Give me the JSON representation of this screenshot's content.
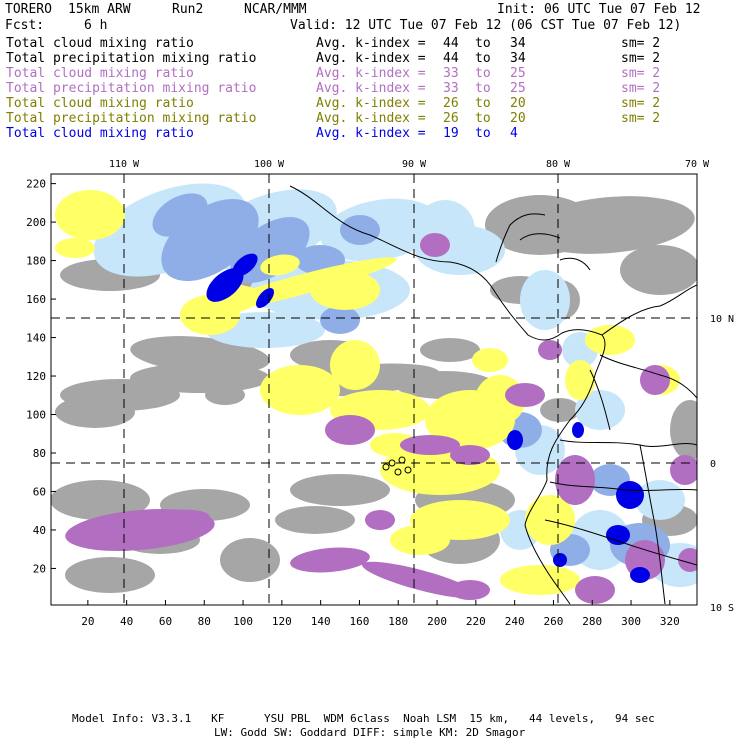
{
  "header": {
    "model": "TORERO",
    "resolution": "15km ARW",
    "run": "Run2",
    "org": "NCAR/MMM",
    "init": "Init: 06 UTC Tue 07 Feb 12",
    "fcst_label": "Fcst:",
    "fcst_value": "6 h",
    "valid": "Valid: 12 UTC Tue 07 Feb 12 (06 CST Tue 07 Feb 12)"
  },
  "legend": [
    {
      "field": "Total cloud mixing ratio",
      "avg": "Avg. k-index =",
      "from": "44",
      "to_word": "to",
      "to": "34",
      "sm": "sm= 2",
      "color": "#000000"
    },
    {
      "field": "Total precipitation mixing ratio",
      "avg": "Avg. k-index =",
      "from": "44",
      "to_word": "to",
      "to": "34",
      "sm": "sm= 2",
      "color": "#000000"
    },
    {
      "field": "Total cloud mixing ratio",
      "avg": "Avg. k-index =",
      "from": "33",
      "to_word": "to",
      "to": "25",
      "sm": "sm= 2",
      "color": "#b26fc2"
    },
    {
      "field": "Total precipitation mixing ratio",
      "avg": "Avg. k-index =",
      "from": "33",
      "to_word": "to",
      "to": "25",
      "sm": "sm= 2",
      "color": "#b26fc2"
    },
    {
      "field": "Total cloud mixing ratio",
      "avg": "Avg. k-index =",
      "from": "26",
      "to_word": "to",
      "to": "20",
      "sm": "sm= 2",
      "color": "#7f7f00"
    },
    {
      "field": "Total precipitation mixing ratio",
      "avg": "Avg. k-index =",
      "from": "26",
      "to_word": "to",
      "to": "20",
      "sm": "sm= 2",
      "color": "#7f7f00"
    },
    {
      "field": "Total cloud mixing ratio",
      "avg": "Avg. k-index =",
      "from": "19",
      "to_word": "to",
      "to": "4",
      "sm": "",
      "color": "#0000e6"
    }
  ],
  "map": {
    "lon_labels": [
      "110 W",
      "100 W",
      "90 W",
      "80 W",
      "70 W"
    ],
    "lat_labels": [
      "10 N",
      "0",
      "10 S"
    ],
    "x_ticks": [
      20,
      40,
      60,
      80,
      100,
      120,
      140,
      160,
      180,
      200,
      220,
      240,
      260,
      280,
      300,
      320
    ],
    "y_ticks": [
      20,
      40,
      60,
      80,
      100,
      120,
      140,
      160,
      180,
      200,
      220
    ],
    "x_range": [
      1,
      334
    ],
    "y_range": [
      1,
      225
    ],
    "colors": {
      "gray": "#a6a6a6",
      "purple": "#b26fc2",
      "yellow": "#ffff66",
      "lightblue": "#c8e6fa",
      "blue": "#8faee8",
      "darkblue": "#0000e6"
    }
  },
  "footer": {
    "line1": "Model Info: V3.3.1   KF      YSU PBL  WDM 6class  Noah LSM  15 km,   44 levels,   94 sec",
    "line2": "LW: Godd SW: Goddard DIFF: simple KM: 2D Smagor"
  }
}
